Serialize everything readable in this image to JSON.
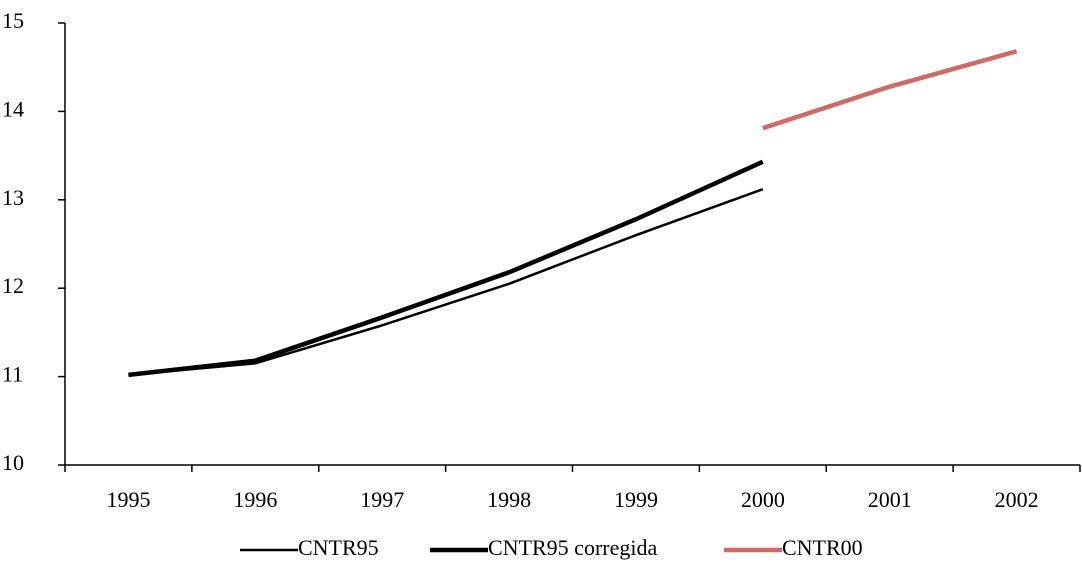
{
  "chart_data": {
    "type": "line",
    "categories": [
      "1995",
      "1996",
      "1997",
      "1998",
      "1999",
      "2000",
      "2001",
      "2002"
    ],
    "series": [
      {
        "name": "CNTR95",
        "color": "#000000",
        "width": 2.5,
        "values": [
          11.02,
          11.15,
          11.58,
          12.05,
          12.6,
          13.12,
          null,
          null
        ]
      },
      {
        "name": "CNTR95 corregida",
        "color": "#000000",
        "width": 4.5,
        "values": [
          11.02,
          11.18,
          11.67,
          12.18,
          12.78,
          13.43,
          null,
          null
        ]
      },
      {
        "name": "CNTR00",
        "color": "#cd6b66",
        "width": 4.5,
        "values": [
          null,
          null,
          null,
          null,
          null,
          13.81,
          14.28,
          14.68
        ]
      }
    ],
    "ylim": [
      10,
      15
    ],
    "yticks": [
      10,
      11,
      12,
      13,
      14,
      15
    ],
    "legend": "bottom"
  }
}
